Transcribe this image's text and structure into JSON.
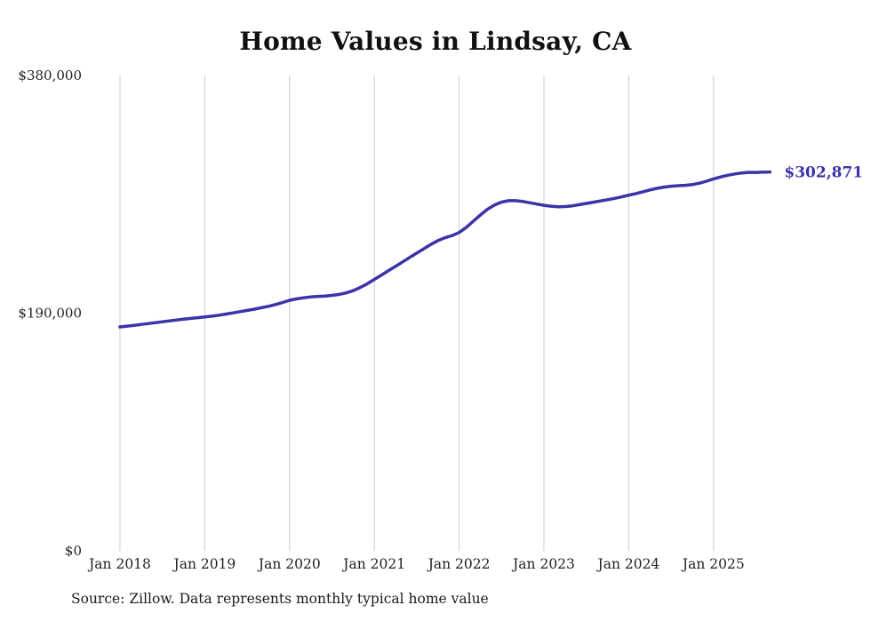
{
  "chart_data": {
    "type": "line",
    "title": "Home Values in Lindsay, CA",
    "series_name": "Monthly typical home value",
    "source": "Source: Zillow. Data represents monthly typical home value",
    "end_label": "$302,871",
    "end_value": 302871,
    "ylim": [
      0,
      380000
    ],
    "line_color": "#3a34a8",
    "grid_color": "#cccccc",
    "y_ticks": [
      {
        "label": "$380,000",
        "value": 380000
      },
      {
        "label": "$190,000",
        "value": 190000
      },
      {
        "label": "$0",
        "value": 0
      }
    ],
    "x_ticks": [
      {
        "label": "Jan 2018",
        "month": "2018-01"
      },
      {
        "label": "Jan 2019",
        "month": "2019-01"
      },
      {
        "label": "Jan 2020",
        "month": "2020-01"
      },
      {
        "label": "Jan 2021",
        "month": "2021-01"
      },
      {
        "label": "Jan 2022",
        "month": "2022-01"
      },
      {
        "label": "Jan 2023",
        "month": "2023-01"
      },
      {
        "label": "Jan 2024",
        "month": "2024-01"
      },
      {
        "label": "Jan 2025",
        "month": "2025-01"
      }
    ],
    "months": [
      "2018-01",
      "2018-02",
      "2018-03",
      "2018-04",
      "2018-05",
      "2018-06",
      "2018-07",
      "2018-08",
      "2018-09",
      "2018-10",
      "2018-11",
      "2018-12",
      "2019-01",
      "2019-02",
      "2019-03",
      "2019-04",
      "2019-05",
      "2019-06",
      "2019-07",
      "2019-08",
      "2019-09",
      "2019-10",
      "2019-11",
      "2019-12",
      "2020-01",
      "2020-02",
      "2020-03",
      "2020-04",
      "2020-05",
      "2020-06",
      "2020-07",
      "2020-08",
      "2020-09",
      "2020-10",
      "2020-11",
      "2020-12",
      "2021-01",
      "2021-02",
      "2021-03",
      "2021-04",
      "2021-05",
      "2021-06",
      "2021-07",
      "2021-08",
      "2021-09",
      "2021-10",
      "2021-11",
      "2021-12",
      "2022-01",
      "2022-02",
      "2022-03",
      "2022-04",
      "2022-05",
      "2022-06",
      "2022-07",
      "2022-08",
      "2022-09",
      "2022-10",
      "2022-11",
      "2022-12",
      "2023-01",
      "2023-02",
      "2023-03",
      "2023-04",
      "2023-05",
      "2023-06",
      "2023-07",
      "2023-08",
      "2023-09",
      "2023-10",
      "2023-11",
      "2023-12",
      "2024-01",
      "2024-02",
      "2024-03",
      "2024-04",
      "2024-05",
      "2024-06",
      "2024-07",
      "2024-08",
      "2024-09",
      "2024-10",
      "2024-11",
      "2024-12",
      "2025-01",
      "2025-02",
      "2025-03",
      "2025-04",
      "2025-05",
      "2025-06",
      "2025-07",
      "2025-08",
      "2025-09"
    ],
    "values": [
      179000,
      179600,
      180300,
      181000,
      181700,
      182400,
      183100,
      183800,
      184500,
      185200,
      185800,
      186400,
      187000,
      187600,
      188400,
      189300,
      190200,
      191200,
      192200,
      193200,
      194300,
      195500,
      196900,
      198500,
      200300,
      201400,
      202300,
      203000,
      203400,
      203700,
      204200,
      205000,
      206200,
      208000,
      210500,
      213500,
      217000,
      220500,
      224000,
      227500,
      231000,
      234500,
      238000,
      241500,
      245000,
      248000,
      250300,
      252000,
      254500,
      258500,
      263500,
      268500,
      273000,
      276500,
      278800,
      279900,
      279900,
      279300,
      278300,
      277200,
      276200,
      275500,
      275100,
      275200,
      275800,
      276700,
      277700,
      278700,
      279700,
      280700,
      281800,
      283000,
      284300,
      285600,
      287000,
      288500,
      289800,
      290800,
      291500,
      291900,
      292200,
      292800,
      293900,
      295500,
      297300,
      298900,
      300200,
      301300,
      302100,
      302600,
      302500,
      302700,
      302871
    ]
  }
}
